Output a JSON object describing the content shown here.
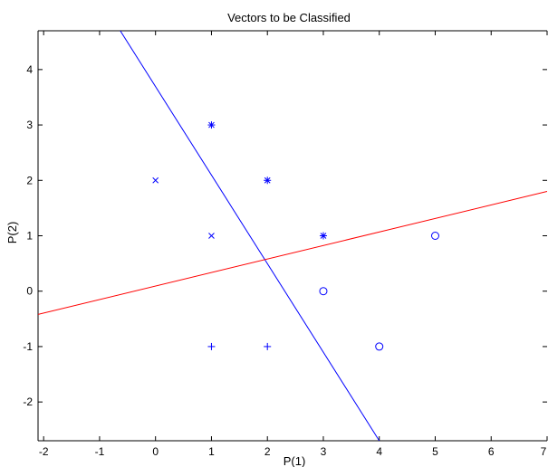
{
  "chart_data": {
    "type": "scatter",
    "title": "Vectors to be Classified",
    "xlabel": "P(1)",
    "ylabel": "P(2)",
    "xlim": [
      -2.1,
      7
    ],
    "ylim": [
      -2.7,
      4.7
    ],
    "xticks": [
      "-2",
      "-1",
      "0",
      "1",
      "2",
      "3",
      "4",
      "5",
      "6",
      "7"
    ],
    "yticks": [
      "-2",
      "-1",
      "0",
      "1",
      "2",
      "3",
      "4"
    ],
    "grid": false,
    "colors": {
      "marker": "#0000ff",
      "boundary_a": "#0000ff",
      "boundary_b": "#ff0000",
      "axes": "#000000"
    },
    "series": [
      {
        "marker": "x",
        "points": [
          [
            0,
            2
          ],
          [
            1,
            1
          ]
        ]
      },
      {
        "marker": "star",
        "points": [
          [
            1,
            3
          ],
          [
            2,
            2
          ],
          [
            3,
            1
          ]
        ]
      },
      {
        "marker": "circle",
        "points": [
          [
            3,
            0
          ],
          [
            4,
            -1
          ],
          [
            5,
            1
          ]
        ]
      },
      {
        "marker": "plus",
        "points": [
          [
            1,
            -1
          ],
          [
            2,
            -1
          ]
        ]
      }
    ],
    "lines": [
      {
        "color": "#0000ff",
        "points": [
          [
            -0.63,
            4.7
          ],
          [
            4.0,
            -2.7
          ]
        ]
      },
      {
        "color": "#ff0000",
        "points": [
          [
            -2.1,
            -0.42
          ],
          [
            7.0,
            1.8
          ]
        ]
      }
    ]
  }
}
